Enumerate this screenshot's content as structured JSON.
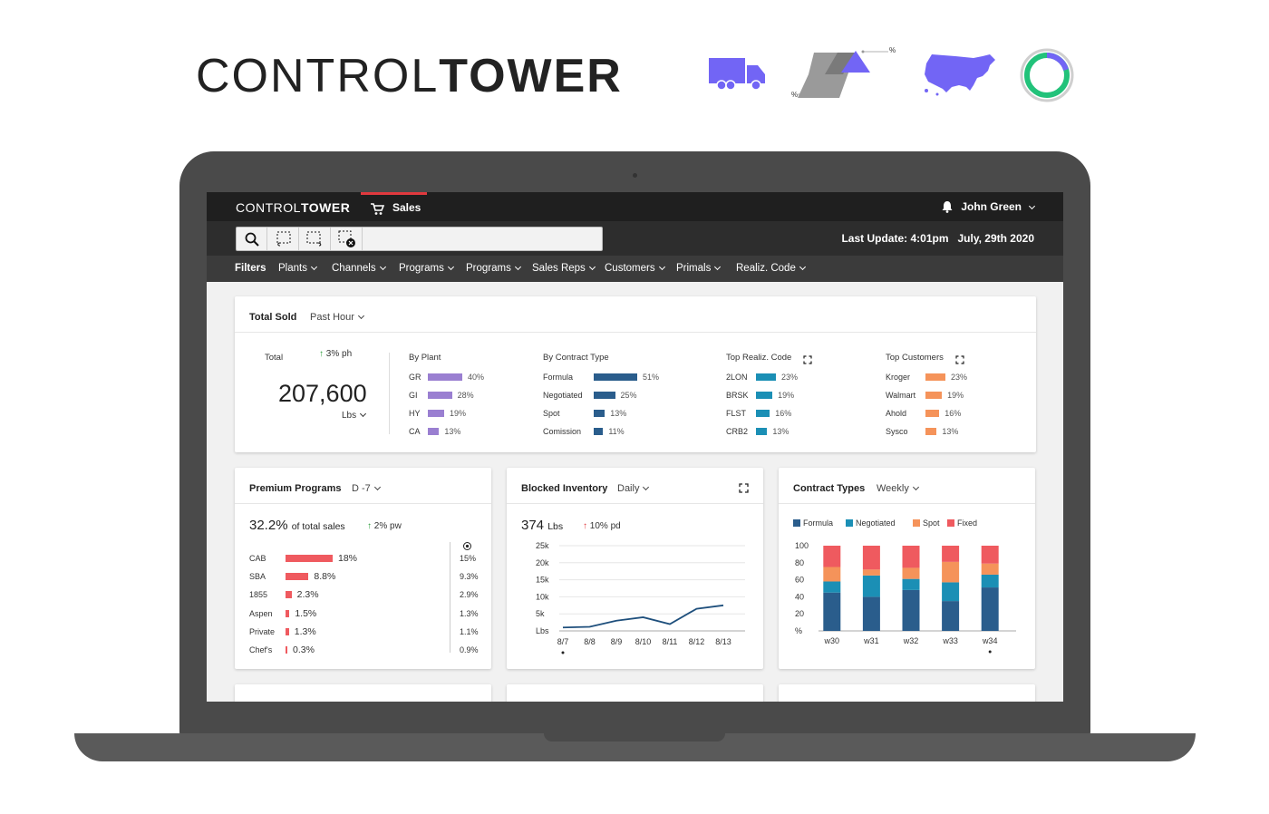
{
  "hero": {
    "brand_light": "CONTROL",
    "brand_bold": "TOWER",
    "percent_mark": "%"
  },
  "app": {
    "logo_light": "CONTROL",
    "logo_bold": "TOWER",
    "nav_sales": "Sales",
    "user": "John Green",
    "last_update": "Last Update: 4:01pm",
    "last_date": "July, 29th 2020",
    "filters": [
      "Filters",
      "Plants",
      "Channels",
      "Programs",
      "Programs",
      "Sales Reps",
      "Customers",
      "Primals",
      "Realiz. Code"
    ]
  },
  "total_sold": {
    "title": "Total Sold",
    "range": "Past Hour",
    "total_label": "Total",
    "change": "3% ph",
    "value": "207,600",
    "unit": "Lbs",
    "groups": [
      {
        "title": "By Plant",
        "color": "#9a7fd1",
        "rows": [
          {
            "label": "GR",
            "pct": "40%",
            "v": 40
          },
          {
            "label": "GI",
            "pct": "28%",
            "v": 28
          },
          {
            "label": "HY",
            "pct": "19%",
            "v": 19
          },
          {
            "label": "CA",
            "pct": "13%",
            "v": 13
          }
        ]
      },
      {
        "title": "By Contract Type",
        "color": "#2a5d8c",
        "rows": [
          {
            "label": "Formula",
            "pct": "51%",
            "v": 51
          },
          {
            "label": "Negotiated",
            "pct": "25%",
            "v": 25
          },
          {
            "label": "Spot",
            "pct": "13%",
            "v": 13
          },
          {
            "label": "Comission",
            "pct": "11%",
            "v": 11
          }
        ]
      },
      {
        "title": "Top Realiz. Code",
        "color": "#1b8fb5",
        "rows": [
          {
            "label": "2LON",
            "pct": "23%",
            "v": 23
          },
          {
            "label": "BRSK",
            "pct": "19%",
            "v": 19
          },
          {
            "label": "FLST",
            "pct": "16%",
            "v": 16
          },
          {
            "label": "CRB2",
            "pct": "13%",
            "v": 13
          }
        ]
      },
      {
        "title": "Top Customers",
        "color": "#f5935a",
        "rows": [
          {
            "label": "Kroger",
            "pct": "23%",
            "v": 23
          },
          {
            "label": "Walmart",
            "pct": "19%",
            "v": 19
          },
          {
            "label": "Ahold",
            "pct": "16%",
            "v": 16
          },
          {
            "label": "Sysco",
            "pct": "13%",
            "v": 13
          }
        ]
      }
    ]
  },
  "premium": {
    "title": "Premium Programs",
    "range": "D -7",
    "headline": "32.2%",
    "headline_suffix": "of total sales",
    "change": "2% pw",
    "color": "#ef5a5f",
    "rows": [
      {
        "label": "CAB",
        "pct": "18%",
        "v": 18,
        "right": "15%"
      },
      {
        "label": "SBA",
        "pct": "8.8%",
        "v": 8.8,
        "right": "9.3%"
      },
      {
        "label": "1855",
        "pct": "2.3%",
        "v": 2.3,
        "right": "2.9%"
      },
      {
        "label": "Aspen",
        "pct": "1.5%",
        "v": 1.5,
        "right": "1.3%"
      },
      {
        "label": "Private",
        "pct": "1.3%",
        "v": 1.3,
        "right": "1.1%"
      },
      {
        "label": "Chef's",
        "pct": "0.3%",
        "v": 0.3,
        "right": "0.9%"
      }
    ]
  },
  "blocked": {
    "title": "Blocked Inventory",
    "range": "Daily",
    "headline": "374",
    "unit": "Lbs",
    "change": "10% pd",
    "chart_data": {
      "type": "line",
      "x": [
        "8/7",
        "8/8",
        "8/9",
        "8/10",
        "8/11",
        "8/12",
        "8/13"
      ],
      "yticks": [
        "25k",
        "20k",
        "15k",
        "10k",
        "5k",
        "Lbs"
      ],
      "ylim": [
        0,
        25000
      ],
      "series": [
        {
          "values": [
            1000,
            1200,
            3000,
            4000,
            2000,
            6500,
            7500
          ]
        }
      ],
      "color": "#1e4f7c"
    }
  },
  "contract": {
    "title": "Contract Types",
    "range": "Weekly",
    "chart_data": {
      "type": "bar",
      "stacked": true,
      "categories": [
        "w30",
        "w31",
        "w32",
        "w33",
        "w34"
      ],
      "yticks": [
        "100",
        "80",
        "60",
        "40",
        "20",
        "%"
      ],
      "ylim": [
        0,
        100
      ],
      "series": [
        {
          "name": "Formula",
          "color": "#2a5d8c",
          "values": [
            45,
            40,
            48,
            35,
            51
          ]
        },
        {
          "name": "Negotiated",
          "color": "#1b8fb5",
          "values": [
            13,
            25,
            13,
            22,
            15
          ]
        },
        {
          "name": "Spot",
          "color": "#f5935a",
          "values": [
            17,
            7,
            13,
            24,
            13
          ]
        },
        {
          "name": "Fixed",
          "color": "#ef5a5f",
          "values": [
            25,
            28,
            26,
            19,
            21
          ]
        }
      ]
    }
  }
}
